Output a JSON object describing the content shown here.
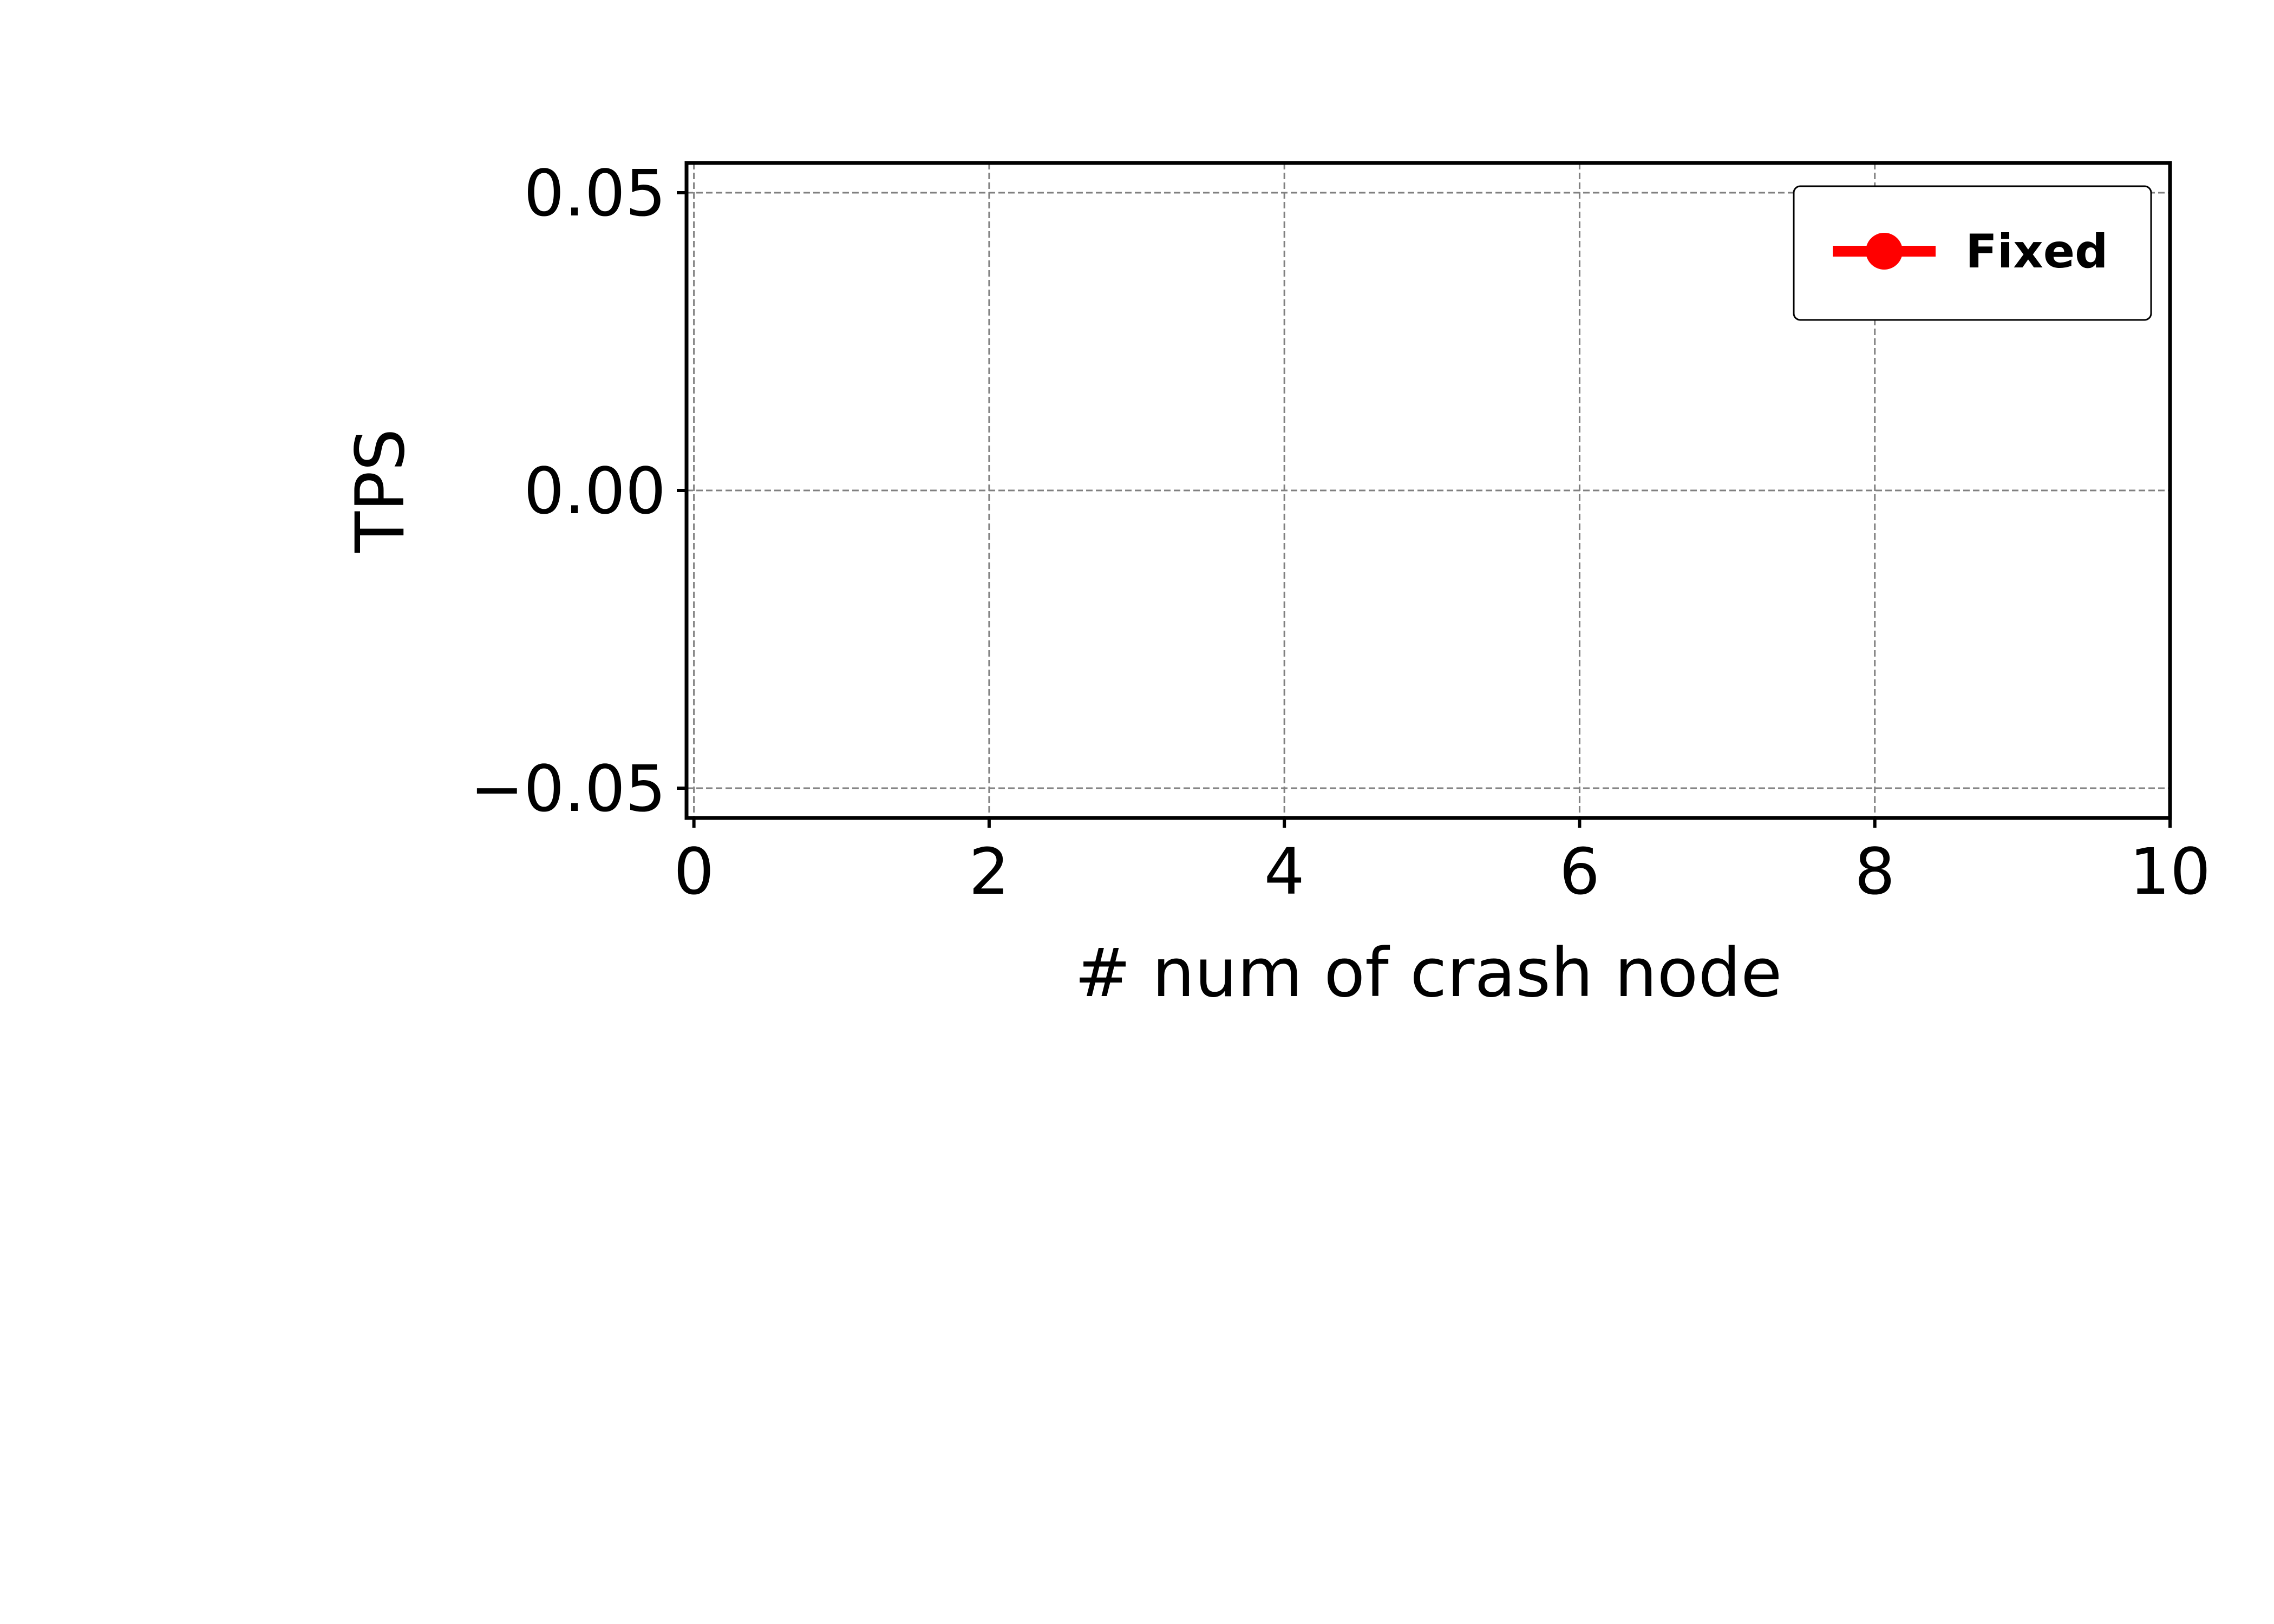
{
  "chart_data": {
    "type": "line",
    "title": "",
    "xlabel": "# num of crash node",
    "ylabel": "TPS",
    "xlim": [
      -0.05,
      10
    ],
    "ylim": [
      -0.055,
      0.055
    ],
    "x_ticks": [
      0,
      2,
      4,
      6,
      8,
      10
    ],
    "x_tick_labels": [
      "0",
      "2",
      "4",
      "6",
      "8",
      "10"
    ],
    "y_ticks": [
      -0.05,
      0.0,
      0.05
    ],
    "y_tick_labels": [
      "−0.05",
      "0.00",
      "0.05"
    ],
    "grid": true,
    "legend_position": "top-right",
    "series": [
      {
        "name": "Fixed",
        "color": "#ff0000",
        "marker": "circle",
        "x": [],
        "y": []
      }
    ]
  }
}
